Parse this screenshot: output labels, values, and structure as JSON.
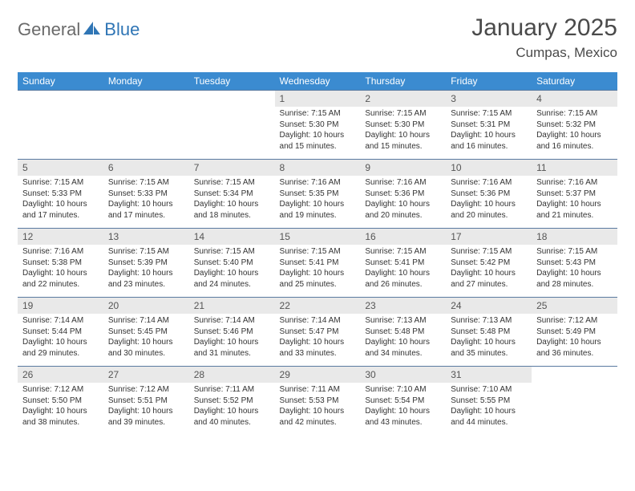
{
  "brand": {
    "part1": "General",
    "part2": "Blue"
  },
  "title": "January 2025",
  "location": "Cumpas, Mexico",
  "colors": {
    "header_bg": "#3b8bd0",
    "header_text": "#ffffff",
    "daynum_bg": "#e9e9e9",
    "cell_border": "#5a7aa0",
    "body_text": "#333333",
    "logo_gray": "#6a6a6a",
    "logo_blue": "#2f75b5"
  },
  "weekdays": [
    "Sunday",
    "Monday",
    "Tuesday",
    "Wednesday",
    "Thursday",
    "Friday",
    "Saturday"
  ],
  "weeks": [
    [
      null,
      null,
      null,
      {
        "n": "1",
        "sr": "7:15 AM",
        "ss": "5:30 PM",
        "dl": "10 hours and 15 minutes."
      },
      {
        "n": "2",
        "sr": "7:15 AM",
        "ss": "5:30 PM",
        "dl": "10 hours and 15 minutes."
      },
      {
        "n": "3",
        "sr": "7:15 AM",
        "ss": "5:31 PM",
        "dl": "10 hours and 16 minutes."
      },
      {
        "n": "4",
        "sr": "7:15 AM",
        "ss": "5:32 PM",
        "dl": "10 hours and 16 minutes."
      }
    ],
    [
      {
        "n": "5",
        "sr": "7:15 AM",
        "ss": "5:33 PM",
        "dl": "10 hours and 17 minutes."
      },
      {
        "n": "6",
        "sr": "7:15 AM",
        "ss": "5:33 PM",
        "dl": "10 hours and 17 minutes."
      },
      {
        "n": "7",
        "sr": "7:15 AM",
        "ss": "5:34 PM",
        "dl": "10 hours and 18 minutes."
      },
      {
        "n": "8",
        "sr": "7:16 AM",
        "ss": "5:35 PM",
        "dl": "10 hours and 19 minutes."
      },
      {
        "n": "9",
        "sr": "7:16 AM",
        "ss": "5:36 PM",
        "dl": "10 hours and 20 minutes."
      },
      {
        "n": "10",
        "sr": "7:16 AM",
        "ss": "5:36 PM",
        "dl": "10 hours and 20 minutes."
      },
      {
        "n": "11",
        "sr": "7:16 AM",
        "ss": "5:37 PM",
        "dl": "10 hours and 21 minutes."
      }
    ],
    [
      {
        "n": "12",
        "sr": "7:16 AM",
        "ss": "5:38 PM",
        "dl": "10 hours and 22 minutes."
      },
      {
        "n": "13",
        "sr": "7:15 AM",
        "ss": "5:39 PM",
        "dl": "10 hours and 23 minutes."
      },
      {
        "n": "14",
        "sr": "7:15 AM",
        "ss": "5:40 PM",
        "dl": "10 hours and 24 minutes."
      },
      {
        "n": "15",
        "sr": "7:15 AM",
        "ss": "5:41 PM",
        "dl": "10 hours and 25 minutes."
      },
      {
        "n": "16",
        "sr": "7:15 AM",
        "ss": "5:41 PM",
        "dl": "10 hours and 26 minutes."
      },
      {
        "n": "17",
        "sr": "7:15 AM",
        "ss": "5:42 PM",
        "dl": "10 hours and 27 minutes."
      },
      {
        "n": "18",
        "sr": "7:15 AM",
        "ss": "5:43 PM",
        "dl": "10 hours and 28 minutes."
      }
    ],
    [
      {
        "n": "19",
        "sr": "7:14 AM",
        "ss": "5:44 PM",
        "dl": "10 hours and 29 minutes."
      },
      {
        "n": "20",
        "sr": "7:14 AM",
        "ss": "5:45 PM",
        "dl": "10 hours and 30 minutes."
      },
      {
        "n": "21",
        "sr": "7:14 AM",
        "ss": "5:46 PM",
        "dl": "10 hours and 31 minutes."
      },
      {
        "n": "22",
        "sr": "7:14 AM",
        "ss": "5:47 PM",
        "dl": "10 hours and 33 minutes."
      },
      {
        "n": "23",
        "sr": "7:13 AM",
        "ss": "5:48 PM",
        "dl": "10 hours and 34 minutes."
      },
      {
        "n": "24",
        "sr": "7:13 AM",
        "ss": "5:48 PM",
        "dl": "10 hours and 35 minutes."
      },
      {
        "n": "25",
        "sr": "7:12 AM",
        "ss": "5:49 PM",
        "dl": "10 hours and 36 minutes."
      }
    ],
    [
      {
        "n": "26",
        "sr": "7:12 AM",
        "ss": "5:50 PM",
        "dl": "10 hours and 38 minutes."
      },
      {
        "n": "27",
        "sr": "7:12 AM",
        "ss": "5:51 PM",
        "dl": "10 hours and 39 minutes."
      },
      {
        "n": "28",
        "sr": "7:11 AM",
        "ss": "5:52 PM",
        "dl": "10 hours and 40 minutes."
      },
      {
        "n": "29",
        "sr": "7:11 AM",
        "ss": "5:53 PM",
        "dl": "10 hours and 42 minutes."
      },
      {
        "n": "30",
        "sr": "7:10 AM",
        "ss": "5:54 PM",
        "dl": "10 hours and 43 minutes."
      },
      {
        "n": "31",
        "sr": "7:10 AM",
        "ss": "5:55 PM",
        "dl": "10 hours and 44 minutes."
      },
      null
    ]
  ],
  "labels": {
    "sunrise": "Sunrise:",
    "sunset": "Sunset:",
    "daylight": "Daylight:"
  }
}
